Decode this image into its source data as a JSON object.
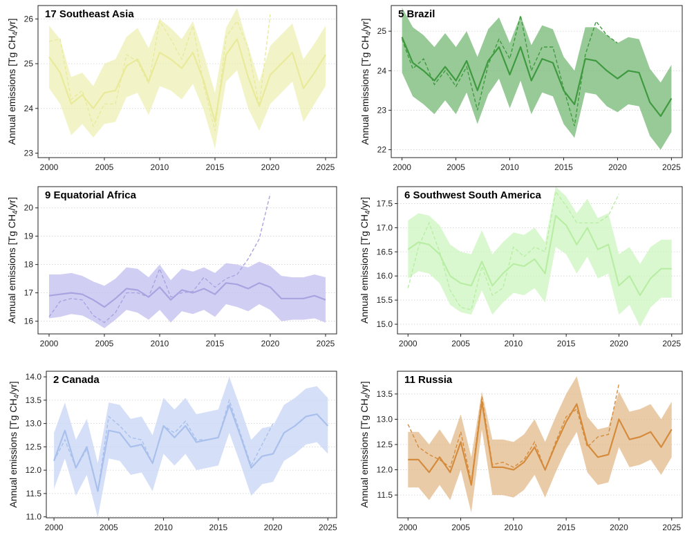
{
  "chart_data": [
    {
      "type": "line",
      "title": "17 Southeast Asia",
      "ylabel": "Annual emissions [Tg CH",
      "ylabel_sub": "4",
      "ylabel_tail": "/yr]",
      "xlim": [
        1999,
        2026
      ],
      "ylim": [
        22.9,
        26.3
      ],
      "xticks": [
        2000,
        2005,
        2010,
        2015,
        2020,
        2025
      ],
      "yticks": [
        23,
        24,
        25,
        26
      ],
      "grid": "horizontal-dotted",
      "color": "#e8ea9a",
      "band_color": "#eef0b4",
      "years": [
        2000,
        2001,
        2002,
        2003,
        2004,
        2005,
        2006,
        2007,
        2008,
        2009,
        2010,
        2011,
        2012,
        2013,
        2014,
        2015,
        2016,
        2017,
        2018,
        2019,
        2020,
        2021,
        2022,
        2023,
        2024,
        2025
      ],
      "mean": [
        25.15,
        24.8,
        24.1,
        24.3,
        24.0,
        24.35,
        24.4,
        24.95,
        25.1,
        24.6,
        25.25,
        25.1,
        24.9,
        25.25,
        24.6,
        23.7,
        25.2,
        25.55,
        24.7,
        24.05,
        24.75,
        25.0,
        25.25,
        24.45,
        24.8,
        25.2
      ],
      "upper": [
        25.85,
        25.55,
        24.7,
        24.8,
        24.5,
        25.0,
        25.1,
        25.6,
        25.8,
        25.35,
        26.0,
        25.8,
        25.55,
        25.95,
        25.2,
        24.35,
        25.8,
        26.25,
        25.4,
        24.6,
        25.4,
        25.65,
        25.9,
        25.1,
        25.45,
        25.85
      ],
      "lower": [
        24.45,
        24.1,
        23.4,
        23.65,
        23.35,
        23.65,
        23.7,
        24.25,
        24.35,
        23.85,
        24.5,
        24.4,
        24.2,
        24.55,
        23.95,
        23.1,
        24.6,
        24.85,
        24.0,
        23.5,
        24.1,
        24.35,
        24.6,
        23.7,
        24.1,
        24.5
      ],
      "prior": [
        25.5,
        25.55,
        24.2,
        24.4,
        23.6,
        24.1,
        24.1,
        25.2,
        25.05,
        24.55,
        25.95,
        25.55,
        25.1,
        25.85,
        24.5,
        23.5,
        25.6,
        25.95,
        25.35,
        24.05,
        26.1
      ]
    },
    {
      "type": "line",
      "title": "5 Brazil",
      "ylabel": "Annual emissions [Tg CH",
      "ylabel_sub": "4",
      "ylabel_tail": "/yr]",
      "xlim": [
        1999,
        2026
      ],
      "ylim": [
        21.8,
        25.65
      ],
      "xticks": [
        2000,
        2005,
        2010,
        2015,
        2020,
        2025
      ],
      "yticks": [
        22,
        23,
        24,
        25
      ],
      "grid": "horizontal-dotted",
      "color": "#3f9a3f",
      "band_color": "#74b874",
      "years": [
        2000,
        2001,
        2002,
        2003,
        2004,
        2005,
        2006,
        2007,
        2008,
        2009,
        2010,
        2011,
        2012,
        2013,
        2014,
        2015,
        2016,
        2017,
        2018,
        2019,
        2020,
        2021,
        2022,
        2023,
        2024,
        2025
      ],
      "mean": [
        24.85,
        24.2,
        24.0,
        23.75,
        24.1,
        23.75,
        24.25,
        23.5,
        24.25,
        24.6,
        23.9,
        24.6,
        23.75,
        24.3,
        24.2,
        23.5,
        23.15,
        24.3,
        24.25,
        24.0,
        23.8,
        24.0,
        23.95,
        23.2,
        22.85,
        23.3
      ],
      "upper": [
        25.6,
        25.1,
        24.9,
        24.6,
        24.95,
        24.6,
        25.0,
        24.35,
        25.05,
        25.35,
        24.7,
        25.4,
        24.65,
        25.15,
        25.05,
        24.35,
        24.0,
        25.1,
        25.1,
        24.9,
        24.7,
        24.85,
        24.8,
        24.05,
        23.7,
        24.15
      ],
      "lower": [
        23.95,
        23.35,
        23.15,
        22.9,
        23.25,
        22.9,
        23.45,
        22.65,
        23.4,
        23.8,
        23.05,
        23.75,
        22.9,
        23.45,
        23.35,
        22.65,
        22.3,
        23.45,
        23.4,
        23.1,
        22.95,
        23.15,
        23.1,
        22.35,
        22.0,
        22.45
      ],
      "prior": [
        24.8,
        24.05,
        24.3,
        23.65,
        24.0,
        23.6,
        24.1,
        23.0,
        24.15,
        24.8,
        24.3,
        25.4,
        24.0,
        24.6,
        24.6,
        23.55,
        22.6,
        24.4,
        25.25,
        24.9,
        24.7
      ]
    },
    {
      "type": "line",
      "title": "9 Equatorial Africa",
      "ylabel": "Annual emissions [Tg CH",
      "ylabel_sub": "4",
      "ylabel_tail": "/yr]",
      "xlim": [
        1999,
        2026
      ],
      "ylim": [
        15.55,
        20.75
      ],
      "xticks": [
        2000,
        2005,
        2010,
        2015,
        2020,
        2025
      ],
      "yticks": [
        16,
        17,
        18,
        19,
        20
      ],
      "grid": "horizontal-dotted",
      "color": "#a9a3e0",
      "band_color": "#c2bef0",
      "years": [
        2000,
        2001,
        2002,
        2003,
        2004,
        2005,
        2006,
        2007,
        2008,
        2009,
        2010,
        2011,
        2012,
        2013,
        2014,
        2015,
        2016,
        2017,
        2018,
        2019,
        2020,
        2021,
        2022,
        2023,
        2024,
        2025
      ],
      "mean": [
        16.9,
        16.95,
        17.0,
        16.95,
        16.75,
        16.5,
        16.8,
        17.15,
        17.1,
        16.85,
        17.2,
        16.75,
        17.1,
        17.0,
        17.15,
        16.95,
        17.35,
        17.3,
        17.15,
        17.35,
        17.2,
        16.8,
        16.8,
        16.8,
        16.9,
        16.75
      ],
      "upper": [
        17.65,
        17.65,
        17.7,
        17.6,
        17.4,
        17.25,
        17.5,
        17.9,
        17.85,
        17.55,
        18.0,
        17.45,
        17.85,
        17.75,
        17.9,
        17.7,
        18.05,
        18.0,
        17.9,
        18.1,
        17.95,
        17.6,
        17.55,
        17.55,
        17.65,
        17.55
      ],
      "lower": [
        16.1,
        16.15,
        16.25,
        16.2,
        16.0,
        15.75,
        16.05,
        16.4,
        16.3,
        16.05,
        16.4,
        15.95,
        16.35,
        16.25,
        16.4,
        16.15,
        16.6,
        16.5,
        16.35,
        16.6,
        16.4,
        16.0,
        16.05,
        16.05,
        16.1,
        15.95
      ],
      "prior": [
        16.15,
        16.7,
        16.8,
        16.75,
        16.2,
        15.95,
        16.3,
        17.0,
        17.0,
        16.85,
        17.85,
        16.85,
        17.0,
        17.05,
        17.55,
        17.2,
        17.5,
        17.65,
        18.2,
        18.9,
        20.5
      ]
    },
    {
      "type": "line",
      "title": "6 Southwest South America",
      "ylabel": "Annual emissions [Tg CH",
      "ylabel_sub": "4",
      "ylabel_tail": "/yr]",
      "xlim": [
        1999,
        2026
      ],
      "ylim": [
        14.8,
        17.85
      ],
      "xticks": [
        2000,
        2005,
        2010,
        2015,
        2020,
        2025
      ],
      "yticks": [
        15.0,
        15.5,
        16.0,
        16.5,
        17.0,
        17.5
      ],
      "grid": "horizontal-dotted",
      "color": "#b8eea4",
      "band_color": "#cdf5bf",
      "years": [
        2000,
        2001,
        2002,
        2003,
        2004,
        2005,
        2006,
        2007,
        2008,
        2009,
        2010,
        2011,
        2012,
        2013,
        2014,
        2015,
        2016,
        2017,
        2018,
        2019,
        2020,
        2021,
        2022,
        2023,
        2024,
        2025
      ],
      "mean": [
        16.55,
        16.7,
        16.65,
        16.45,
        16.0,
        15.85,
        15.8,
        16.3,
        15.8,
        16.05,
        16.25,
        16.2,
        16.35,
        16.05,
        17.25,
        17.05,
        16.65,
        17.0,
        16.55,
        16.65,
        15.8,
        16.0,
        15.6,
        15.95,
        16.15,
        16.15
      ],
      "upper": [
        17.15,
        17.3,
        17.25,
        17.05,
        16.65,
        16.5,
        16.45,
        16.95,
        16.45,
        16.7,
        16.9,
        16.85,
        17.0,
        16.7,
        17.85,
        17.65,
        17.3,
        17.6,
        17.2,
        17.3,
        16.45,
        16.6,
        16.25,
        16.6,
        16.75,
        16.75
      ],
      "lower": [
        15.95,
        16.1,
        16.05,
        15.85,
        15.4,
        15.25,
        15.2,
        15.7,
        15.2,
        15.45,
        15.65,
        15.6,
        15.75,
        15.45,
        16.6,
        16.45,
        16.05,
        16.4,
        15.95,
        16.05,
        15.2,
        15.4,
        14.95,
        15.35,
        15.55,
        15.55
      ],
      "prior": [
        15.75,
        16.6,
        17.1,
        16.5,
        15.7,
        15.35,
        15.3,
        16.2,
        15.6,
        15.75,
        16.6,
        16.4,
        16.6,
        16.5,
        17.75,
        17.45,
        17.1,
        17.1,
        17.1,
        17.25,
        17.7
      ]
    },
    {
      "type": "line",
      "title": "2 Canada",
      "ylabel": "Annual emissions [Tg CH",
      "ylabel_sub": "4",
      "ylabel_tail": "/yr]",
      "xlim": [
        1999.3,
        2025.8
      ],
      "ylim": [
        10.98,
        14.12
      ],
      "xticks": [
        2000,
        2005,
        2010,
        2015,
        2020,
        2025
      ],
      "yticks": [
        11.0,
        11.5,
        12.0,
        12.5,
        13.0,
        13.5,
        14.0
      ],
      "grid": "horizontal-dotted",
      "color": "#a9bfec",
      "band_color": "#c7d6f5",
      "years": [
        2000,
        2001,
        2002,
        2003,
        2004,
        2005,
        2006,
        2007,
        2008,
        2009,
        2010,
        2011,
        2012,
        2013,
        2014,
        2015,
        2016,
        2017,
        2018,
        2019,
        2020,
        2021,
        2022,
        2023,
        2024,
        2025
      ],
      "mean": [
        12.2,
        12.85,
        12.05,
        12.5,
        11.55,
        12.85,
        12.8,
        12.5,
        12.55,
        12.15,
        12.95,
        12.7,
        12.95,
        12.6,
        12.65,
        12.7,
        13.4,
        12.75,
        12.05,
        12.3,
        12.35,
        12.8,
        12.95,
        13.15,
        13.2,
        12.95
      ],
      "upper": [
        12.8,
        13.45,
        12.65,
        13.1,
        12.15,
        13.45,
        13.4,
        13.1,
        13.15,
        12.75,
        13.55,
        13.3,
        13.55,
        13.2,
        13.25,
        13.3,
        14.0,
        13.35,
        12.65,
        12.9,
        12.95,
        13.4,
        13.55,
        13.75,
        13.8,
        13.55
      ],
      "lower": [
        11.6,
        12.25,
        11.45,
        11.9,
        10.98,
        12.25,
        12.2,
        11.9,
        11.95,
        11.55,
        12.35,
        12.1,
        12.35,
        12.0,
        12.05,
        12.1,
        12.8,
        12.15,
        11.45,
        11.7,
        11.75,
        12.2,
        12.35,
        12.55,
        12.6,
        12.35
      ],
      "prior": [
        12.2,
        12.65,
        12.05,
        12.45,
        11.55,
        13.15,
        12.95,
        12.7,
        12.65,
        12.15,
        12.95,
        12.8,
        13.05,
        12.65,
        12.65,
        12.7,
        13.5,
        12.8,
        12.1,
        12.55,
        13.0
      ]
    },
    {
      "type": "line",
      "title": "11 Russia",
      "ylabel": "Annual emissions [Tg CH",
      "ylabel_sub": "4",
      "ylabel_tail": "/yr]",
      "xlim": [
        1999,
        2026
      ],
      "ylim": [
        11.05,
        13.95
      ],
      "xticks": [
        2000,
        2005,
        2010,
        2015,
        2020,
        2025
      ],
      "yticks": [
        11.5,
        12.0,
        12.5,
        13.0,
        13.5
      ],
      "grid": "horizontal-dotted",
      "color": "#d48b3c",
      "band_color": "#e3b98a",
      "years": [
        2000,
        2001,
        2002,
        2003,
        2004,
        2005,
        2006,
        2007,
        2008,
        2009,
        2010,
        2011,
        2012,
        2013,
        2014,
        2015,
        2016,
        2017,
        2018,
        2019,
        2020,
        2021,
        2022,
        2023,
        2024,
        2025
      ],
      "mean": [
        12.2,
        12.2,
        11.95,
        12.25,
        11.95,
        12.55,
        11.7,
        13.35,
        12.05,
        12.05,
        12.0,
        12.15,
        12.45,
        12.0,
        12.5,
        12.95,
        13.3,
        12.5,
        12.25,
        12.3,
        13.0,
        12.6,
        12.65,
        12.75,
        12.45,
        12.8
      ],
      "upper": [
        12.75,
        12.75,
        12.5,
        12.8,
        12.5,
        13.1,
        12.25,
        13.55,
        12.6,
        12.6,
        12.55,
        12.7,
        13.0,
        12.55,
        13.05,
        13.5,
        13.85,
        13.05,
        12.8,
        12.85,
        13.55,
        13.15,
        13.2,
        13.3,
        13.0,
        13.35
      ],
      "lower": [
        11.65,
        11.65,
        11.4,
        11.7,
        11.4,
        12.0,
        11.15,
        12.8,
        11.5,
        11.5,
        11.45,
        11.6,
        11.9,
        11.45,
        11.95,
        12.4,
        12.75,
        11.95,
        11.7,
        11.75,
        12.45,
        12.05,
        12.1,
        12.2,
        11.9,
        12.25
      ],
      "prior": [
        12.9,
        12.45,
        12.3,
        12.2,
        12.05,
        12.75,
        11.75,
        13.45,
        12.1,
        12.15,
        12.05,
        12.2,
        12.55,
        12.0,
        12.55,
        13.05,
        13.2,
        12.45,
        12.65,
        12.7,
        13.7
      ]
    }
  ]
}
